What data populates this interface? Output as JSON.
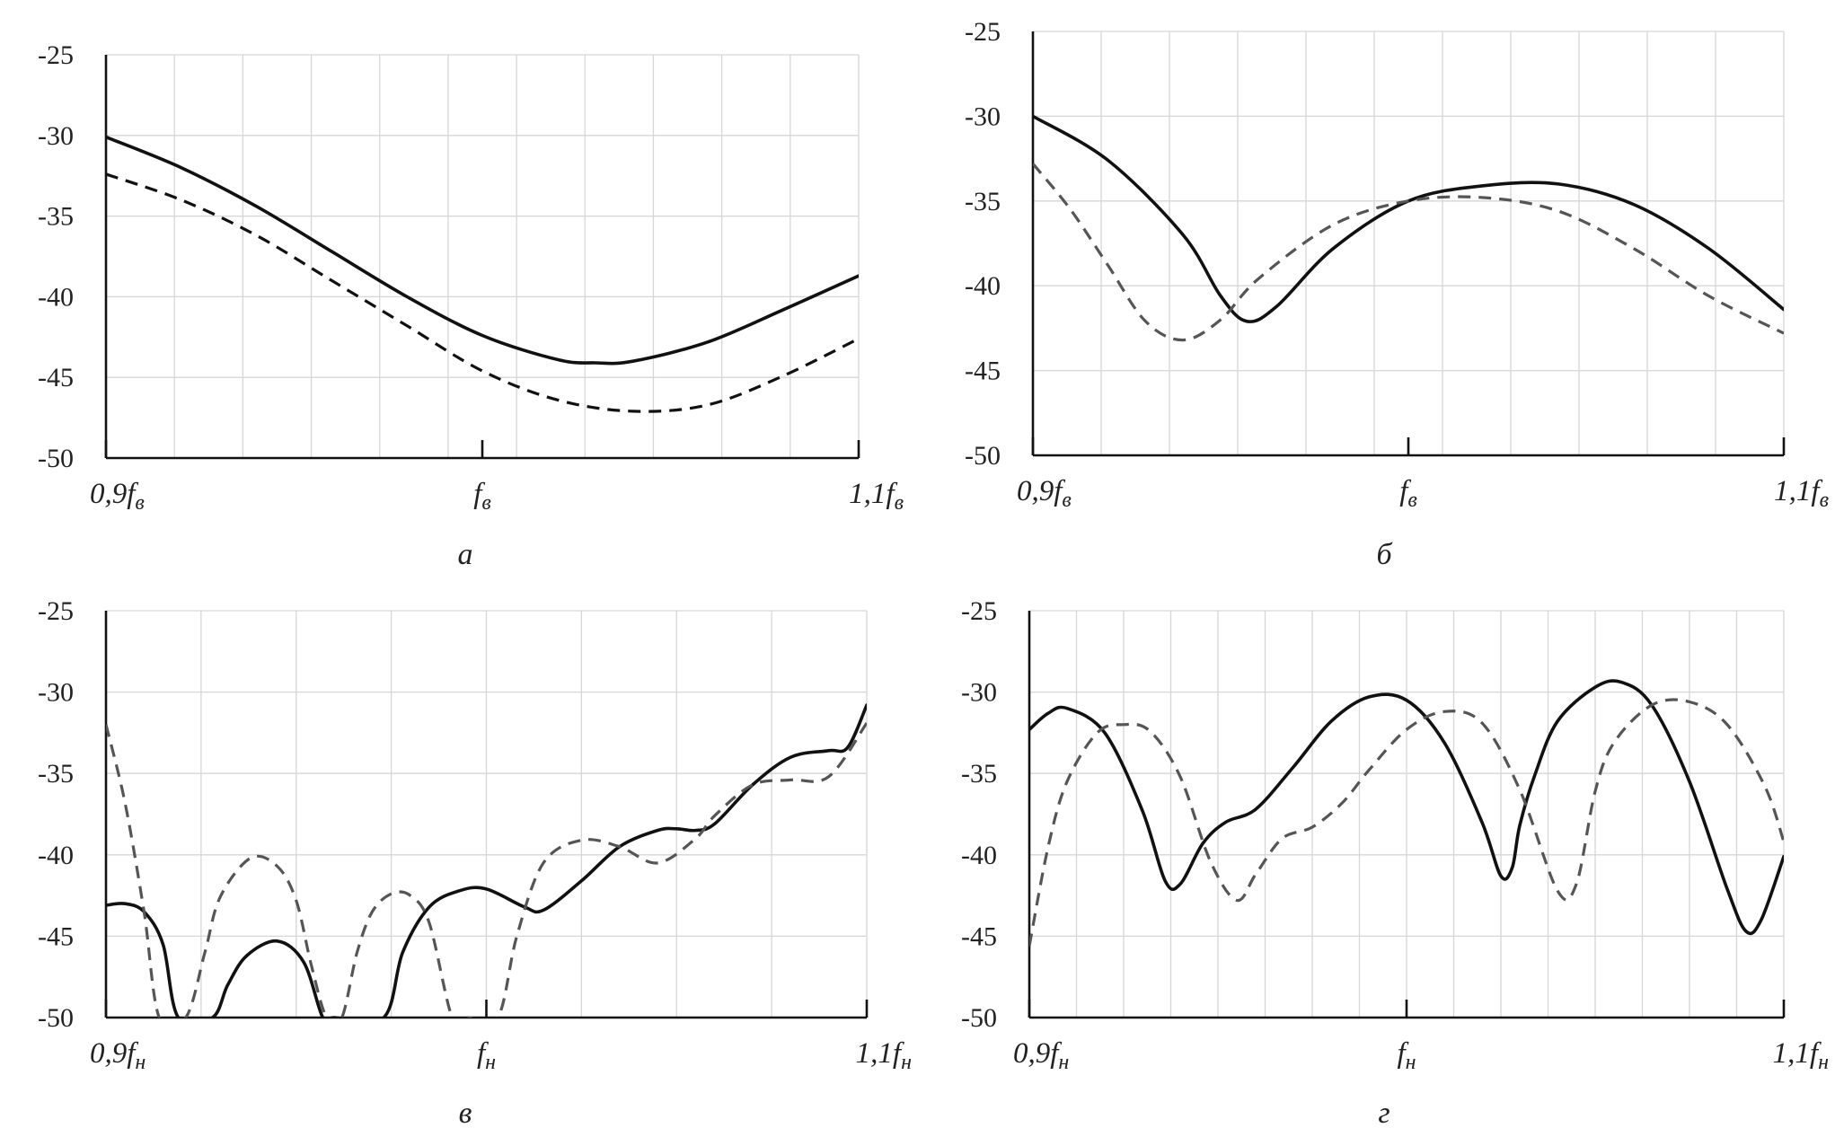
{
  "chart_data": [
    {
      "id": "a",
      "type": "line",
      "caption": "а",
      "ylim": [
        -50,
        -25
      ],
      "yticks": [
        -25,
        -30,
        -35,
        -40,
        -45,
        -50
      ],
      "ytick_labels": [
        "-25",
        "-30",
        "-35",
        "-40",
        "-45",
        "-50"
      ],
      "x_domain": [
        0.9,
        1.1
      ],
      "x_categories": [
        {
          "x": 0.9,
          "main": "0,9f",
          "sub": "в"
        },
        {
          "x": 1.0,
          "main": "f",
          "sub": "в"
        },
        {
          "x": 1.1,
          "main": "1,1f",
          "sub": "в"
        }
      ],
      "grid": true,
      "colors": {
        "solid": "#111111",
        "dashed": "#111111"
      },
      "series": [
        {
          "style": "solid",
          "x": [
            0.9,
            0.92,
            0.94,
            0.96,
            0.98,
            1.0,
            1.02,
            1.03,
            1.04,
            1.06,
            1.08,
            1.1
          ],
          "y": [
            -30.1,
            -32.0,
            -34.4,
            -37.2,
            -40.0,
            -42.4,
            -43.9,
            -44.1,
            -44.0,
            -42.8,
            -40.8,
            -38.7
          ]
        },
        {
          "style": "dashed",
          "x": [
            0.9,
            0.92,
            0.94,
            0.96,
            0.98,
            1.0,
            1.02,
            1.04,
            1.06,
            1.08,
            1.1
          ],
          "y": [
            -32.4,
            -34.0,
            -36.2,
            -39.0,
            -41.8,
            -44.6,
            -46.4,
            -47.1,
            -46.7,
            -44.9,
            -42.6
          ]
        }
      ]
    },
    {
      "id": "b",
      "type": "line",
      "caption": "б",
      "ylim": [
        -50,
        -25
      ],
      "yticks": [
        -25,
        -30,
        -35,
        -40,
        -45,
        -50
      ],
      "ytick_labels": [
        "-25",
        "-30",
        "-35",
        "-40",
        "-45",
        "-50"
      ],
      "x_domain": [
        0.9,
        1.1
      ],
      "x_categories": [
        {
          "x": 0.9,
          "main": "0,9f",
          "sub": "в"
        },
        {
          "x": 1.0,
          "main": "f",
          "sub": "в"
        },
        {
          "x": 1.1,
          "main": "1,1f",
          "sub": "в"
        }
      ],
      "grid": true,
      "colors": {
        "solid": "#111111",
        "dashed": "#555555"
      },
      "series": [
        {
          "style": "solid",
          "x": [
            0.9,
            0.92,
            0.94,
            0.95,
            0.957,
            0.965,
            0.98,
            1.0,
            1.02,
            1.04,
            1.06,
            1.08,
            1.1
          ],
          "y": [
            -30.0,
            -32.6,
            -37.0,
            -40.6,
            -42.1,
            -41.2,
            -37.8,
            -35.0,
            -34.1,
            -34.0,
            -35.2,
            -37.8,
            -41.4
          ]
        },
        {
          "style": "dashed",
          "x": [
            0.9,
            0.91,
            0.92,
            0.93,
            0.94,
            0.95,
            0.96,
            0.98,
            1.0,
            1.02,
            1.04,
            1.06,
            1.08,
            1.1
          ],
          "y": [
            -32.8,
            -35.5,
            -38.8,
            -42.1,
            -43.2,
            -42.0,
            -39.6,
            -36.4,
            -35.0,
            -34.8,
            -35.6,
            -37.8,
            -40.6,
            -42.8
          ]
        }
      ]
    },
    {
      "id": "c",
      "type": "line",
      "caption": "в",
      "ylim": [
        -50,
        -25
      ],
      "yticks": [
        -25,
        -30,
        -35,
        -40,
        -45,
        -50
      ],
      "ytick_labels": [
        "-25",
        "-30",
        "-35",
        "-40",
        "-45",
        "-50"
      ],
      "x_domain": [
        0.9,
        1.1
      ],
      "x_categories": [
        {
          "x": 0.9,
          "main": "0,9f",
          "sub": "н"
        },
        {
          "x": 1.0,
          "main": "f",
          "sub": "н"
        },
        {
          "x": 1.1,
          "main": "1,1f",
          "sub": "н"
        }
      ],
      "grid": true,
      "colors": {
        "solid": "#111111",
        "dashed": "#555555"
      },
      "series": [
        {
          "style": "solid",
          "x": [
            0.9,
            0.905,
            0.91,
            0.915,
            0.919,
            0.928,
            0.932,
            0.937,
            0.945,
            0.952,
            0.957,
            0.96,
            0.973,
            0.978,
            0.985,
            0.993,
            1.0,
            1.01,
            1.015,
            1.025,
            1.035,
            1.045,
            1.05,
            1.055,
            1.06,
            1.07,
            1.08,
            1.09,
            1.095,
            1.1
          ],
          "y": [
            -43.1,
            -43.0,
            -43.5,
            -45.5,
            -50.0,
            -50.0,
            -48.0,
            -46.2,
            -45.3,
            -46.6,
            -50.0,
            -50.0,
            -50.0,
            -46.0,
            -43.2,
            -42.2,
            -42.1,
            -43.2,
            -43.4,
            -41.6,
            -39.5,
            -38.5,
            -38.4,
            -38.5,
            -38.1,
            -35.7,
            -34.0,
            -33.6,
            -33.4,
            -30.8
          ]
        },
        {
          "style": "dashed",
          "x": [
            0.9,
            0.905,
            0.91,
            0.914,
            0.921,
            0.926,
            0.93,
            0.938,
            0.945,
            0.95,
            0.954,
            0.958,
            0.962,
            0.966,
            0.97,
            0.975,
            0.98,
            0.985,
            0.991,
            0.995,
            1.003,
            1.008,
            1.015,
            1.025,
            1.035,
            1.045,
            1.055,
            1.06,
            1.07,
            1.08,
            1.09,
            1.1
          ],
          "y": [
            -32.0,
            -36.8,
            -43.5,
            -50.0,
            -50.0,
            -46.0,
            -42.6,
            -40.2,
            -40.7,
            -42.8,
            -46.8,
            -50.0,
            -50.0,
            -46.0,
            -43.5,
            -42.4,
            -42.5,
            -44.2,
            -50.0,
            -50.0,
            -50.0,
            -45.0,
            -40.5,
            -39.1,
            -39.5,
            -40.5,
            -39.0,
            -37.6,
            -35.7,
            -35.4,
            -35.2,
            -31.9
          ]
        }
      ]
    },
    {
      "id": "d",
      "type": "line",
      "caption": "г",
      "ylim": [
        -50,
        -25
      ],
      "yticks": [
        -25,
        -30,
        -35,
        -40,
        -45,
        -50
      ],
      "ytick_labels": [
        "-25",
        "-30",
        "-35",
        "-40",
        "-45",
        "-50"
      ],
      "x_domain": [
        0.9,
        1.1
      ],
      "x_categories": [
        {
          "x": 0.9,
          "main": "0,9f",
          "sub": "н"
        },
        {
          "x": 1.0,
          "main": "f",
          "sub": "н"
        },
        {
          "x": 1.1,
          "main": "1,1f",
          "sub": "н"
        }
      ],
      "grid": true,
      "colors": {
        "solid": "#111111",
        "dashed": "#555555"
      },
      "series": [
        {
          "style": "solid",
          "x": [
            0.9,
            0.905,
            0.91,
            0.92,
            0.93,
            0.936,
            0.94,
            0.946,
            0.952,
            0.96,
            0.97,
            0.98,
            0.99,
            1.0,
            1.01,
            1.02,
            1.025,
            1.028,
            1.03,
            1.034,
            1.04,
            1.05,
            1.057,
            1.065,
            1.075,
            1.085,
            1.09,
            1.094,
            1.1
          ],
          "y": [
            -32.3,
            -31.3,
            -31.0,
            -32.5,
            -37.3,
            -41.6,
            -41.8,
            -39.3,
            -38.0,
            -37.2,
            -34.6,
            -31.8,
            -30.3,
            -30.5,
            -33.1,
            -38.0,
            -41.3,
            -40.8,
            -38.2,
            -35.1,
            -31.8,
            -29.7,
            -29.4,
            -30.8,
            -35.5,
            -42.1,
            -44.7,
            -44.0,
            -40.1
          ]
        },
        {
          "style": "dashed",
          "x": [
            0.9,
            0.905,
            0.91,
            0.918,
            0.925,
            0.932,
            0.94,
            0.948,
            0.955,
            0.96,
            0.967,
            0.975,
            0.983,
            0.99,
            1.0,
            1.01,
            1.02,
            1.03,
            1.04,
            1.045,
            1.05,
            1.055,
            1.065,
            1.075,
            1.085,
            1.095,
            1.1
          ],
          "y": [
            -45.6,
            -39.5,
            -35.5,
            -32.5,
            -32.0,
            -32.4,
            -35.2,
            -40.4,
            -42.8,
            -41.2,
            -39.0,
            -38.3,
            -36.8,
            -34.8,
            -32.3,
            -31.2,
            -31.9,
            -36.0,
            -42.2,
            -41.8,
            -36.1,
            -33.1,
            -30.8,
            -30.6,
            -32.0,
            -35.8,
            -39.2
          ]
        }
      ]
    }
  ]
}
